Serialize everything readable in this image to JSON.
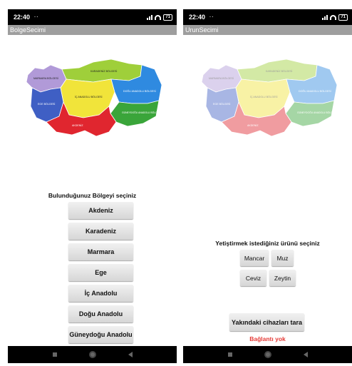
{
  "left_screen": {
    "status": {
      "time": "22:40",
      "dots": "··",
      "battery": "71"
    },
    "title": "BolgeSecimi",
    "map_labels": {
      "marmara": "MARMARA BÖLGESİ",
      "karadeniz": "KARADENİZ BÖLGESİ",
      "ic_anadolu": "İÇ ANADOLU BÖLGESİ",
      "ege": "EGE BÖLGESİ",
      "dogu": "DOĞU ANADOLU BÖLGESİ",
      "guneydogu": "GÜNEYDOĞU ANADOLU BÖLGESİ",
      "akdeniz": "AKDENİZ"
    },
    "prompt": "Bulunduğunuz Bölgeyi seçiniz",
    "regions": [
      "Akdeniz",
      "Karadeniz",
      "Marmara",
      "Ege",
      "İç Anadolu",
      "Doğu Anadolu",
      "Güneydoğu Anadolu"
    ]
  },
  "right_screen": {
    "status": {
      "time": "22:40",
      "dots": "··",
      "battery": "71"
    },
    "title": "UrunSecimi",
    "map_labels": {
      "marmara": "MARMARA BÖLGESİ",
      "karadeniz": "KARADENİZ BÖLGESİ",
      "ic_anadolu": "İÇ ANADOLU BÖLGESİ",
      "ege": "EGE BÖLGESİ",
      "dogu": "DOĞU ANADOLU BÖLGESİ",
      "guneydogu": "GÜNEYDOĞU ANADOLU BÖLGESİ",
      "akdeniz": "AKDENİZ"
    },
    "prompt": "Yetiştirmek istediğiniz ürünü seçiniz",
    "products": [
      "Mancar",
      "Muz",
      "Ceviz",
      "Zeytin"
    ],
    "scan_button": "Yakındaki cihazları tara",
    "connection_status": "Bağlantı yok"
  },
  "colors": {
    "marmara": "#b19ad8",
    "karadeniz": "#9fcf3a",
    "ic_anadolu": "#f1e43a",
    "ege": "#3f5fc4",
    "akdeniz": "#e0262f",
    "dogu": "#2f8ae0",
    "guneydogu": "#3aa53a",
    "status_red": "#e53935"
  }
}
